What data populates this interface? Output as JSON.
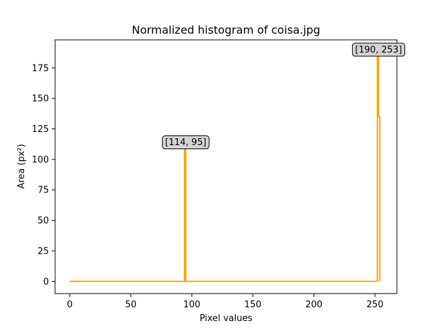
{
  "chart_data": {
    "type": "line",
    "title": "Normalized histogram of coisa.jpg",
    "xlabel": "Pixel values",
    "ylabel": "Area (px²)",
    "xlim": [
      -12,
      268
    ],
    "ylim": [
      -10,
      198
    ],
    "xticks": [
      0,
      50,
      100,
      150,
      200,
      250
    ],
    "yticks": [
      0,
      25,
      50,
      75,
      100,
      125,
      150,
      175
    ],
    "grid": false,
    "series": [
      {
        "color": "#ffa500",
        "points": [
          [
            0,
            0
          ],
          [
            94,
            0
          ],
          [
            94,
            114
          ],
          [
            95,
            114
          ],
          [
            95,
            0
          ],
          [
            252,
            0
          ],
          [
            252,
            190
          ],
          [
            253,
            190
          ],
          [
            253,
            135
          ],
          [
            254,
            135
          ],
          [
            254,
            0
          ]
        ]
      }
    ],
    "annotations": [
      {
        "text": "[114, 95]",
        "x": 95,
        "y": 114
      },
      {
        "text": "[190, 253]",
        "x": 253,
        "y": 190
      }
    ]
  }
}
